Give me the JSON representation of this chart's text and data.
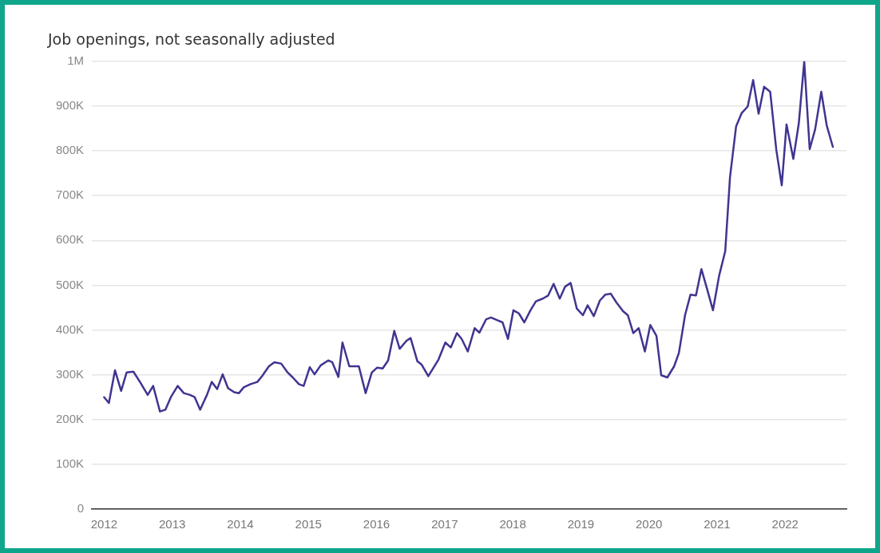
{
  "chart_data": {
    "type": "line",
    "title": "Job openings, not seasonally adjusted",
    "grid": "y",
    "legend": false,
    "marker": "none",
    "line_style": "solid",
    "xlim": [
      2011.82,
      2022.9
    ],
    "xticks": [
      2012,
      2013,
      2014,
      2015,
      2016,
      2017,
      2018,
      2019,
      2020,
      2021,
      2022
    ],
    "ylim": [
      0,
      1000000
    ],
    "yticks": [
      0,
      {
        "value": 100000,
        "label": "100K"
      },
      {
        "value": 200000,
        "label": "200K"
      },
      {
        "value": 300000,
        "label": "300K"
      },
      {
        "value": 400000,
        "label": "400K"
      },
      {
        "value": 500000,
        "label": "500K"
      },
      {
        "value": 600000,
        "label": "600K"
      },
      {
        "value": 700000,
        "label": "700K"
      },
      {
        "value": 800000,
        "label": "800K"
      },
      {
        "value": 900000,
        "label": "900K"
      },
      {
        "value": 1000000,
        "label": "1M"
      }
    ],
    "x": [
      2012.0,
      2012.07,
      2012.16,
      2012.25,
      2012.33,
      2012.43,
      2012.53,
      2012.64,
      2012.72,
      2012.82,
      2012.9,
      2012.98,
      2013.08,
      2013.17,
      2013.26,
      2013.33,
      2013.41,
      2013.51,
      2013.58,
      2013.66,
      2013.74,
      2013.82,
      2013.91,
      2013.98,
      2014.05,
      2014.15,
      2014.25,
      2014.32,
      2014.42,
      2014.5,
      2014.6,
      2014.69,
      2014.77,
      2014.86,
      2014.93,
      2015.02,
      2015.09,
      2015.18,
      2015.29,
      2015.35,
      2015.44,
      2015.5,
      2015.6,
      2015.74,
      2015.84,
      2015.93,
      2016.01,
      2016.09,
      2016.17,
      2016.26,
      2016.34,
      2016.44,
      2016.5,
      2016.6,
      2016.66,
      2016.76,
      2016.91,
      2017.01,
      2017.09,
      2017.18,
      2017.25,
      2017.34,
      2017.44,
      2017.51,
      2017.61,
      2017.68,
      2017.77,
      2017.85,
      2017.93,
      2018.01,
      2018.09,
      2018.17,
      2018.26,
      2018.34,
      2018.44,
      2018.52,
      2018.6,
      2018.69,
      2018.77,
      2018.85,
      2018.94,
      2019.03,
      2019.1,
      2019.19,
      2019.28,
      2019.36,
      2019.44,
      2019.52,
      2019.62,
      2019.69,
      2019.77,
      2019.85,
      2019.94,
      2020.02,
      2020.11,
      2020.18,
      2020.27,
      2020.37,
      2020.44,
      2020.53,
      2020.61,
      2020.69,
      2020.77,
      2020.86,
      2020.94,
      2021.03,
      2021.12,
      2021.19,
      2021.28,
      2021.36,
      2021.45,
      2021.53,
      2021.61,
      2021.69,
      2021.78,
      2021.87,
      2021.95,
      2022.02,
      2022.12,
      2022.2,
      2022.28,
      2022.36,
      2022.44,
      2022.53,
      2022.61,
      2022.7
    ],
    "series": [
      {
        "color": "#3f3590",
        "values": [
          250000,
          237000,
          310000,
          264000,
          305000,
          307000,
          283000,
          255000,
          275000,
          218000,
          222000,
          250000,
          275000,
          259000,
          255000,
          250000,
          222000,
          255000,
          284000,
          268000,
          301000,
          270000,
          261000,
          259000,
          272000,
          279000,
          284000,
          297000,
          319000,
          328000,
          325000,
          306000,
          294000,
          279000,
          275000,
          317000,
          301000,
          321000,
          332000,
          328000,
          295000,
          372000,
          319000,
          319000,
          259000,
          305000,
          316000,
          314000,
          332000,
          398000,
          358000,
          376000,
          382000,
          330000,
          323000,
          297000,
          334000,
          372000,
          361000,
          393000,
          380000,
          352000,
          404000,
          394000,
          424000,
          428000,
          422000,
          417000,
          380000,
          444000,
          437000,
          417000,
          444000,
          464000,
          470000,
          477000,
          503000,
          470000,
          497000,
          505000,
          448000,
          433000,
          455000,
          431000,
          466000,
          479000,
          481000,
          462000,
          442000,
          433000,
          393000,
          404000,
          352000,
          411000,
          387000,
          299000,
          294000,
          319000,
          349000,
          433000,
          479000,
          477000,
          536000,
          488000,
          444000,
          521000,
          576000,
          741000,
          855000,
          884000,
          899000,
          958000,
          883000,
          943000,
          932000,
          802000,
          723000,
          859000,
          782000,
          861000,
          1000000,
          804000,
          848000,
          932000,
          857000,
          809000
        ]
      }
    ]
  }
}
